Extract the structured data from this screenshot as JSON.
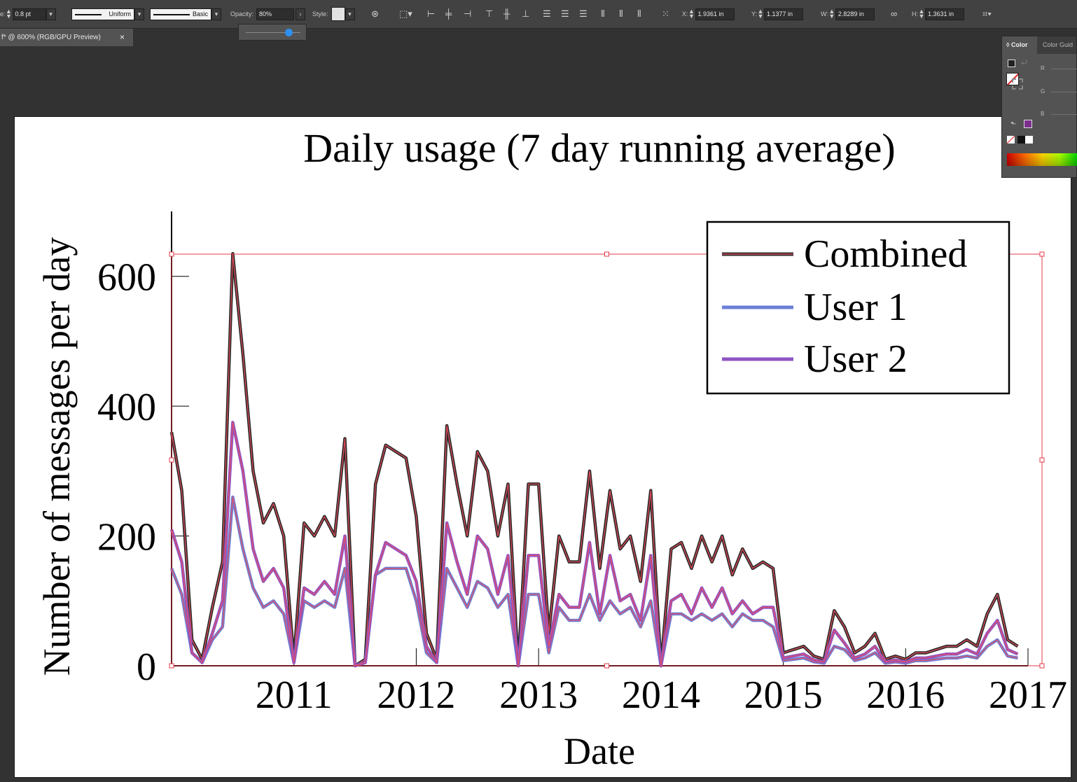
{
  "control_bar": {
    "stroke_size_label_fragment": "e:",
    "stroke_size_value": "0.8 pt",
    "variable_width_profile": "Uniform",
    "brush_definition": "Basic",
    "opacity_label": "Opacity:",
    "opacity_value": "80%",
    "style_label": "Style:",
    "x_label": "X:",
    "x_value": "1.9361 in",
    "y_label": "Y:",
    "y_value": "1.1377 in",
    "w_label": "W:",
    "w_value": "2.8289 in",
    "h_label": "H:",
    "h_value": "1.3631 in"
  },
  "document_tab": {
    "title": "f* @ 600% (RGB/GPU Preview)",
    "close_glyph": "×"
  },
  "color_panel": {
    "tabs": [
      "Color",
      "Color Guid"
    ],
    "channels": [
      "R",
      "G",
      "B"
    ],
    "selected_color": "#7a2f8c"
  },
  "chart_data": {
    "type": "line",
    "title": "Daily usage (7 day running average)",
    "xlabel": "Date",
    "ylabel": "Number of messages per day",
    "x_ticks": [
      "2011",
      "2012",
      "2013",
      "2014",
      "2015",
      "2016",
      "2017"
    ],
    "y_ticks": [
      "0",
      "200",
      "400",
      "600"
    ],
    "xlim": [
      "2010-01-01",
      "2017-01-01"
    ],
    "ylim": [
      0,
      700
    ],
    "legend": {
      "position": "top-right"
    },
    "grid": false,
    "x": [
      "2010-01",
      "2010-02",
      "2010-03",
      "2010-04",
      "2010-05",
      "2010-06",
      "2010-07",
      "2010-08",
      "2010-09",
      "2010-10",
      "2010-11",
      "2010-12",
      "2011-01",
      "2011-02",
      "2011-03",
      "2011-04",
      "2011-05",
      "2011-06",
      "2011-07",
      "2011-08",
      "2011-09",
      "2011-10",
      "2011-11",
      "2011-12",
      "2012-01",
      "2012-02",
      "2012-03",
      "2012-04",
      "2012-05",
      "2012-06",
      "2012-07",
      "2012-08",
      "2012-09",
      "2012-10",
      "2012-11",
      "2012-12",
      "2013-01",
      "2013-02",
      "2013-03",
      "2013-04",
      "2013-05",
      "2013-06",
      "2013-07",
      "2013-08",
      "2013-09",
      "2013-10",
      "2013-11",
      "2013-12",
      "2014-01",
      "2014-02",
      "2014-03",
      "2014-04",
      "2014-05",
      "2014-06",
      "2014-07",
      "2014-08",
      "2014-09",
      "2014-10",
      "2014-11",
      "2014-12",
      "2015-01",
      "2015-02",
      "2015-03",
      "2015-04",
      "2015-05",
      "2015-06",
      "2015-07",
      "2015-08",
      "2015-09",
      "2015-10",
      "2015-11",
      "2015-12",
      "2016-01",
      "2016-02",
      "2016-03",
      "2016-04",
      "2016-05",
      "2016-06",
      "2016-07",
      "2016-08",
      "2016-09",
      "2016-10",
      "2016-11",
      "2016-12"
    ],
    "series": [
      {
        "name": "Combined",
        "color": "#2b2b2b",
        "values": [
          360,
          270,
          40,
          10,
          90,
          160,
          635,
          480,
          300,
          220,
          250,
          200,
          10,
          220,
          200,
          230,
          200,
          350,
          0,
          10,
          280,
          340,
          330,
          320,
          230,
          50,
          10,
          370,
          280,
          200,
          330,
          300,
          200,
          280,
          0,
          280,
          280,
          50,
          200,
          160,
          160,
          300,
          150,
          270,
          180,
          200,
          130,
          270,
          0,
          180,
          190,
          150,
          200,
          160,
          200,
          140,
          180,
          150,
          160,
          150,
          20,
          25,
          30,
          15,
          10,
          85,
          60,
          20,
          30,
          50,
          10,
          15,
          10,
          20,
          20,
          25,
          30,
          30,
          40,
          30,
          80,
          110,
          40,
          30
        ]
      },
      {
        "name": "User 1",
        "color": "#6b7fd6",
        "values": [
          150,
          110,
          20,
          5,
          40,
          60,
          260,
          180,
          120,
          90,
          100,
          80,
          5,
          100,
          90,
          100,
          90,
          150,
          0,
          5,
          140,
          150,
          150,
          150,
          100,
          20,
          5,
          150,
          120,
          90,
          130,
          120,
          90,
          110,
          0,
          110,
          110,
          20,
          90,
          70,
          70,
          110,
          70,
          100,
          80,
          90,
          60,
          100,
          0,
          80,
          80,
          70,
          80,
          70,
          80,
          60,
          80,
          70,
          70,
          60,
          8,
          10,
          12,
          6,
          4,
          30,
          25,
          8,
          12,
          20,
          4,
          6,
          4,
          8,
          8,
          10,
          12,
          12,
          15,
          12,
          30,
          40,
          15,
          12
        ]
      },
      {
        "name": "User 2",
        "color": "#8e55c4",
        "values": [
          210,
          160,
          20,
          5,
          50,
          100,
          375,
          300,
          180,
          130,
          150,
          120,
          5,
          120,
          110,
          130,
          110,
          200,
          0,
          5,
          140,
          190,
          180,
          170,
          130,
          30,
          5,
          220,
          160,
          110,
          200,
          180,
          110,
          170,
          0,
          170,
          170,
          30,
          110,
          90,
          90,
          190,
          80,
          170,
          100,
          110,
          70,
          170,
          0,
          100,
          110,
          80,
          120,
          90,
          120,
          80,
          100,
          80,
          90,
          90,
          12,
          15,
          18,
          9,
          6,
          55,
          35,
          12,
          18,
          30,
          6,
          9,
          6,
          12,
          12,
          15,
          18,
          18,
          25,
          18,
          50,
          70,
          25,
          18
        ]
      }
    ]
  }
}
